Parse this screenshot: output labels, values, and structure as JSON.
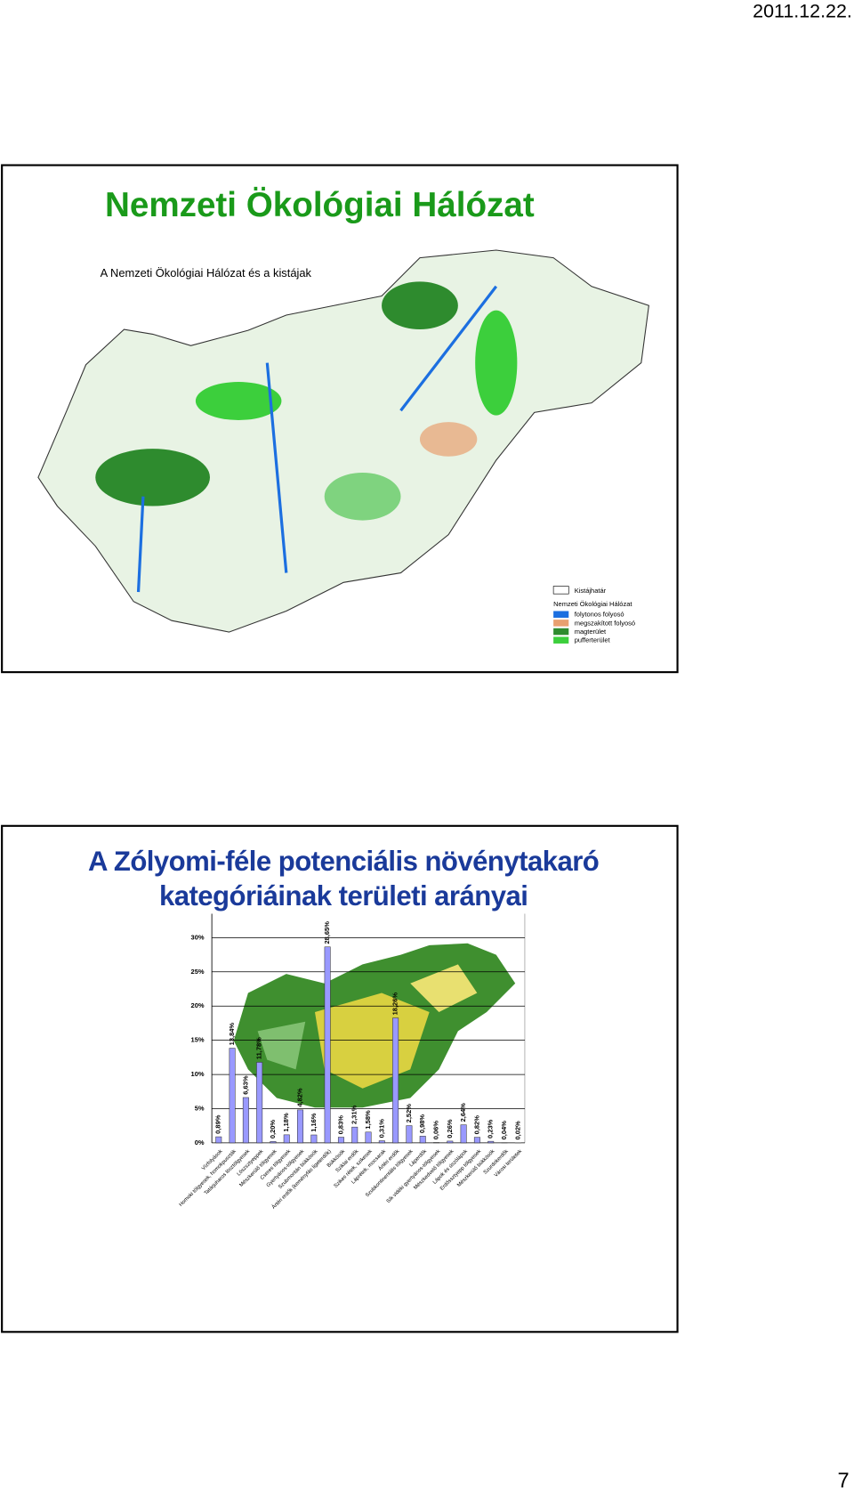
{
  "header": {
    "date": "2011.12.22."
  },
  "map_slide": {
    "title": "Nemzeti Ökológiai Hálózat",
    "subtitle": "A Nemzeti Ökológiai Hálózat és a  kistájak",
    "legend": {
      "border_label": "Kistájhatár",
      "heading": "Nemzeti Ökológiai Hálózat",
      "items": [
        {
          "label": "folytonos folyosó",
          "color": "#1c6fe0"
        },
        {
          "label": "megszakított folyosó",
          "color": "#e8a070"
        },
        {
          "label": "magterület",
          "color": "#2e8b2e"
        },
        {
          "label": "pufferterület",
          "color": "#3ccf3c"
        }
      ]
    }
  },
  "chart_data": {
    "type": "bar",
    "title": "A Zólyomi-féle potenciális növénytakaró kategóriáinak területi arányai",
    "categories": [
      "Vízfolyások",
      "Homoki tölgyesek, homokpuszták",
      "Tatárjuharos lösztölgyesek",
      "Löszsztyeppek",
      "Mészkerülő tölgyesek",
      "Cseres tölgyesek",
      "Gyertyános-tölgyesek",
      "Szubmontán bükkösök",
      "Ártéri erdők (keményfás ligeterdők)",
      "Bükkösök",
      "Sziklai erdők",
      "Szikes rétek, szikesek",
      "Láprétek, mocsarak",
      "Ártéri erdők",
      "Szubkontinentális tölgyesek",
      "Láperdők",
      "Sík vidéki gyertyános-tölgyesek",
      "Mészkedvelő tölgyesek",
      "Lápok és úszólápok",
      "Erdőssztyepp tölgyesek",
      "Mészkerülő bükkösök",
      "Szurdokerdők",
      "Városi területek"
    ],
    "values": [
      0.89,
      13.84,
      6.63,
      11.78,
      0.2,
      1.18,
      4.82,
      1.16,
      28.65,
      0.83,
      2.31,
      1.58,
      0.31,
      18.26,
      2.52,
      0.98,
      0.06,
      0.26,
      2.64,
      0.82,
      0.23,
      0.04,
      0.02
    ],
    "value_labels": [
      "0,89%",
      "13,84%",
      "6,63%",
      "11,78%",
      "0,20%",
      "1,18%",
      "4,82%",
      "1,16%",
      "28,65%",
      "0,83%",
      "2,31%",
      "1,58%",
      "0,31%",
      "18,26%",
      "2,52%",
      "0,98%",
      "0,06%",
      "0,26%",
      "2,64%",
      "0,82%",
      "0,23%",
      "0,04%",
      "0,02%"
    ],
    "color": "#9999ff",
    "ylim": [
      0,
      33.5
    ],
    "yticks": [
      {
        "value": 0,
        "label": "0%"
      },
      {
        "value": 5,
        "label": "5%"
      },
      {
        "value": 10,
        "label": "10%"
      },
      {
        "value": 15,
        "label": "15%"
      },
      {
        "value": 20,
        "label": "20%"
      },
      {
        "value": 25,
        "label": "25%"
      },
      {
        "value": 30,
        "label": "30%"
      }
    ],
    "grid": true
  },
  "page_number": "7"
}
